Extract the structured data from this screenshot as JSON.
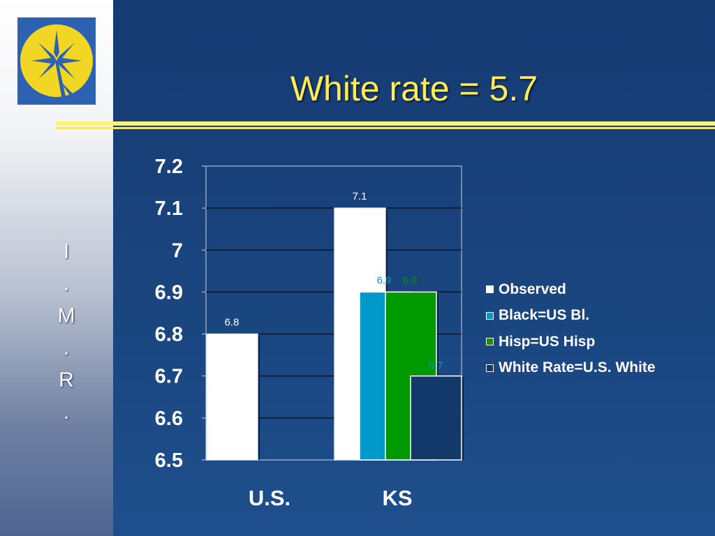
{
  "slide": {
    "title": "White rate = 5.7",
    "vertical_label": [
      "I",
      ".",
      "M",
      ".",
      "R",
      "."
    ]
  },
  "colors": {
    "observed": "#ffffff",
    "black": "#0099cc",
    "hisp": "#009900",
    "white_rate": "#13396b",
    "gridline": "#0a1430",
    "axis_text": "#ffffff"
  },
  "chart_data": {
    "type": "bar",
    "title": "",
    "xlabel": "",
    "ylabel": "",
    "ylim": [
      6.5,
      7.2
    ],
    "yticks": [
      "7.2",
      "7.1",
      "7",
      "6.9",
      "6.8",
      "6.7",
      "6.6",
      "6.5"
    ],
    "grid": true,
    "legend_position": "right",
    "categories": [
      "U.S.",
      "KS"
    ],
    "series": [
      {
        "name": "Observed",
        "values": [
          6.8,
          7.1
        ],
        "labels": [
          "6.8",
          "7.1"
        ]
      },
      {
        "name": "Black=US Bl.",
        "values": [
          null,
          6.9
        ],
        "labels": [
          "",
          "6.9"
        ]
      },
      {
        "name": "Hisp=US Hisp",
        "values": [
          null,
          6.9
        ],
        "labels": [
          "",
          "6.9"
        ]
      },
      {
        "name": "White Rate=U.S. White",
        "values": [
          null,
          6.7
        ],
        "labels": [
          "",
          "6.7"
        ]
      }
    ]
  }
}
